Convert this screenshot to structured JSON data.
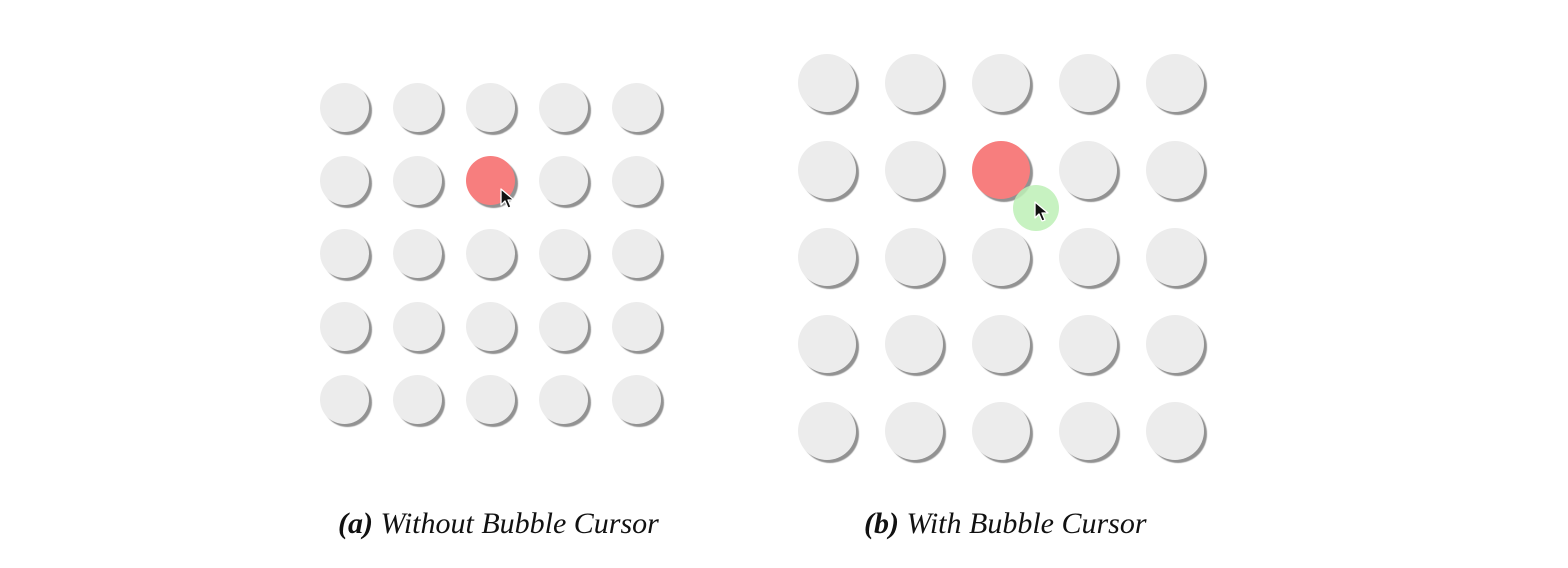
{
  "figure": {
    "panels": [
      {
        "id": "a",
        "label": "(a)",
        "caption": "Without Bubble Cursor",
        "grid": {
          "rows": 5,
          "cols": 5
        },
        "target": {
          "row": 1,
          "col": 2
        },
        "bubble_cursor": false
      },
      {
        "id": "b",
        "label": "(b)",
        "caption": "With Bubble Cursor",
        "grid": {
          "rows": 5,
          "cols": 5
        },
        "target": {
          "row": 1,
          "col": 2
        },
        "bubble_cursor": true
      }
    ],
    "colors": {
      "dot": "#ececec",
      "target": "#f77e7e",
      "bubble": "#bdf0b6",
      "cursor_fill": "#111111",
      "cursor_stroke": "#ffffff"
    },
    "icons": {
      "cursor": "arrow-pointer-icon"
    }
  }
}
